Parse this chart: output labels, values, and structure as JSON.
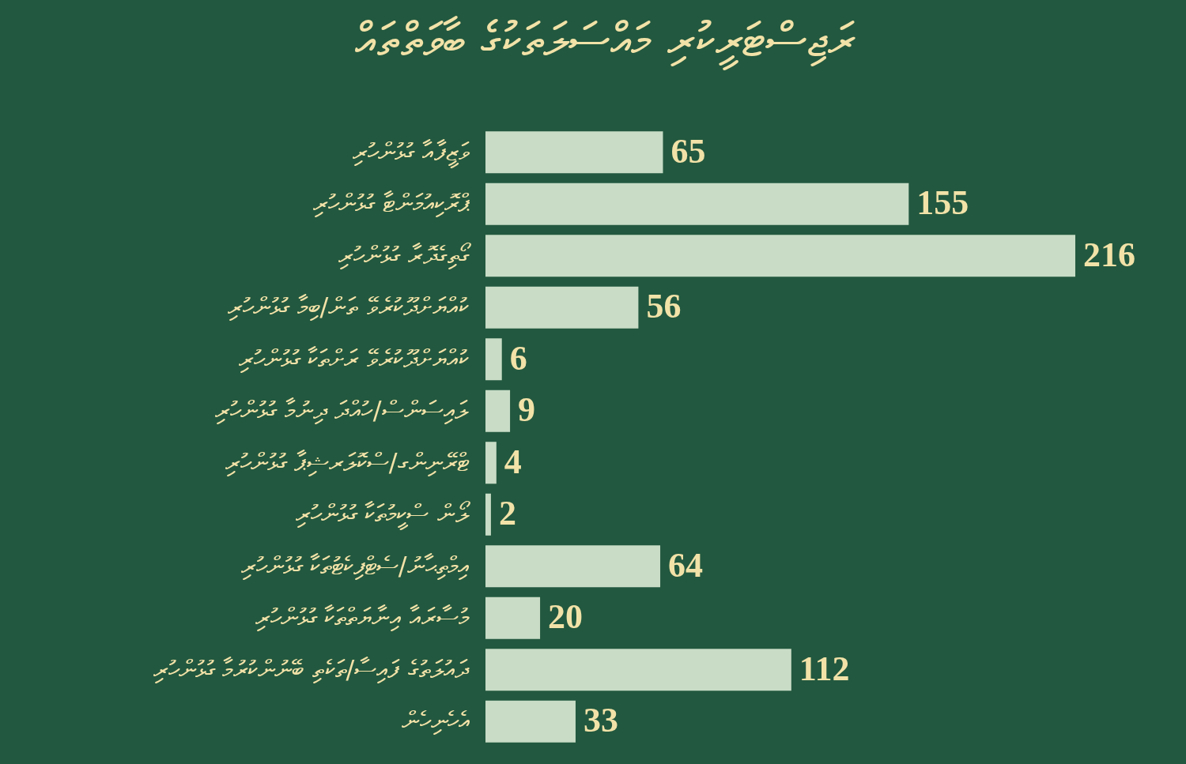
{
  "chart_data": {
    "type": "bar",
    "orientation": "horizontal",
    "title": "ރަޖިސްޓަރީކުރި މައްސަލަތަކުގެ ބާވަތްތައް",
    "categories": [
      "ވަޒީފާއާ ގުޅުންހުރި",
      "ޕްރޮކިއުމަންޓާ ގުޅުންހުރި",
      "ގޯތިގެދޮރާ ގުޅުންހުރި",
      "ކުއްޔަށްދޫކުރެވޭ ތަން/ބިމާ ގުޅުންހުރި",
      "ކުއްޔަށްދޫކުރެވޭ ރަށްތަކާ ގުޅުންހުރި",
      "ލައިސަންސް/ހުއްދަ ދިނުމާ ގުޅުންހުރި",
      "ޓްރޭނިންގ/ސްކޮލަރޝިޕާ ގުޅުންހުރި",
      "ލޯން ސްކީމުތަކާ ގުޅުންހުރި",
      "އިމްތިޙާނު/ސެޓްފިކެޓުތަކާ ގުޅުންހުރި",
      "މުސާރައާ އިނާޔަތްތަކާ ގުޅުންހުރި",
      "ދައުލަތުގެ ފައިސާ/ތަކެތި ބޭނުންކުރުމާ ގުޅުންހުރި",
      "އެހެނިހެން"
    ],
    "values": [
      65,
      155,
      216,
      56,
      6,
      9,
      4,
      2,
      64,
      20,
      112,
      33
    ],
    "color": "#c8dcc6",
    "data_labels": true,
    "tick_labels": "y"
  }
}
